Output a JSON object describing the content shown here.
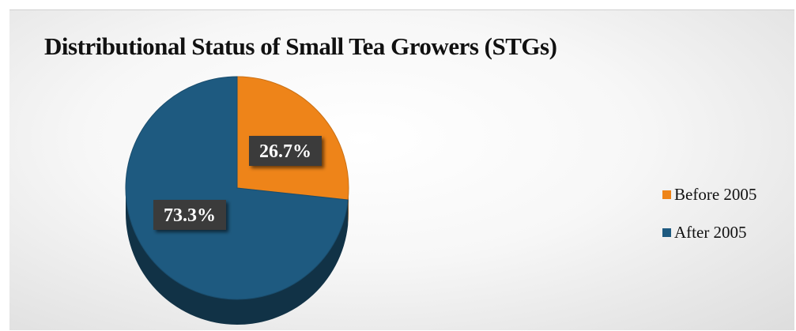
{
  "chart_data": {
    "type": "pie",
    "title": "Distributional Status of Small Tea Growers (STGs)",
    "labels": [
      "Before 2005",
      "After 2005"
    ],
    "values": [
      26.7,
      73.3
    ],
    "unit": "%",
    "data_labels": [
      "26.7%",
      "73.3%"
    ],
    "colors": [
      "#ee8419",
      "#1e5a80"
    ],
    "legend_position": "right",
    "style": "3d"
  }
}
